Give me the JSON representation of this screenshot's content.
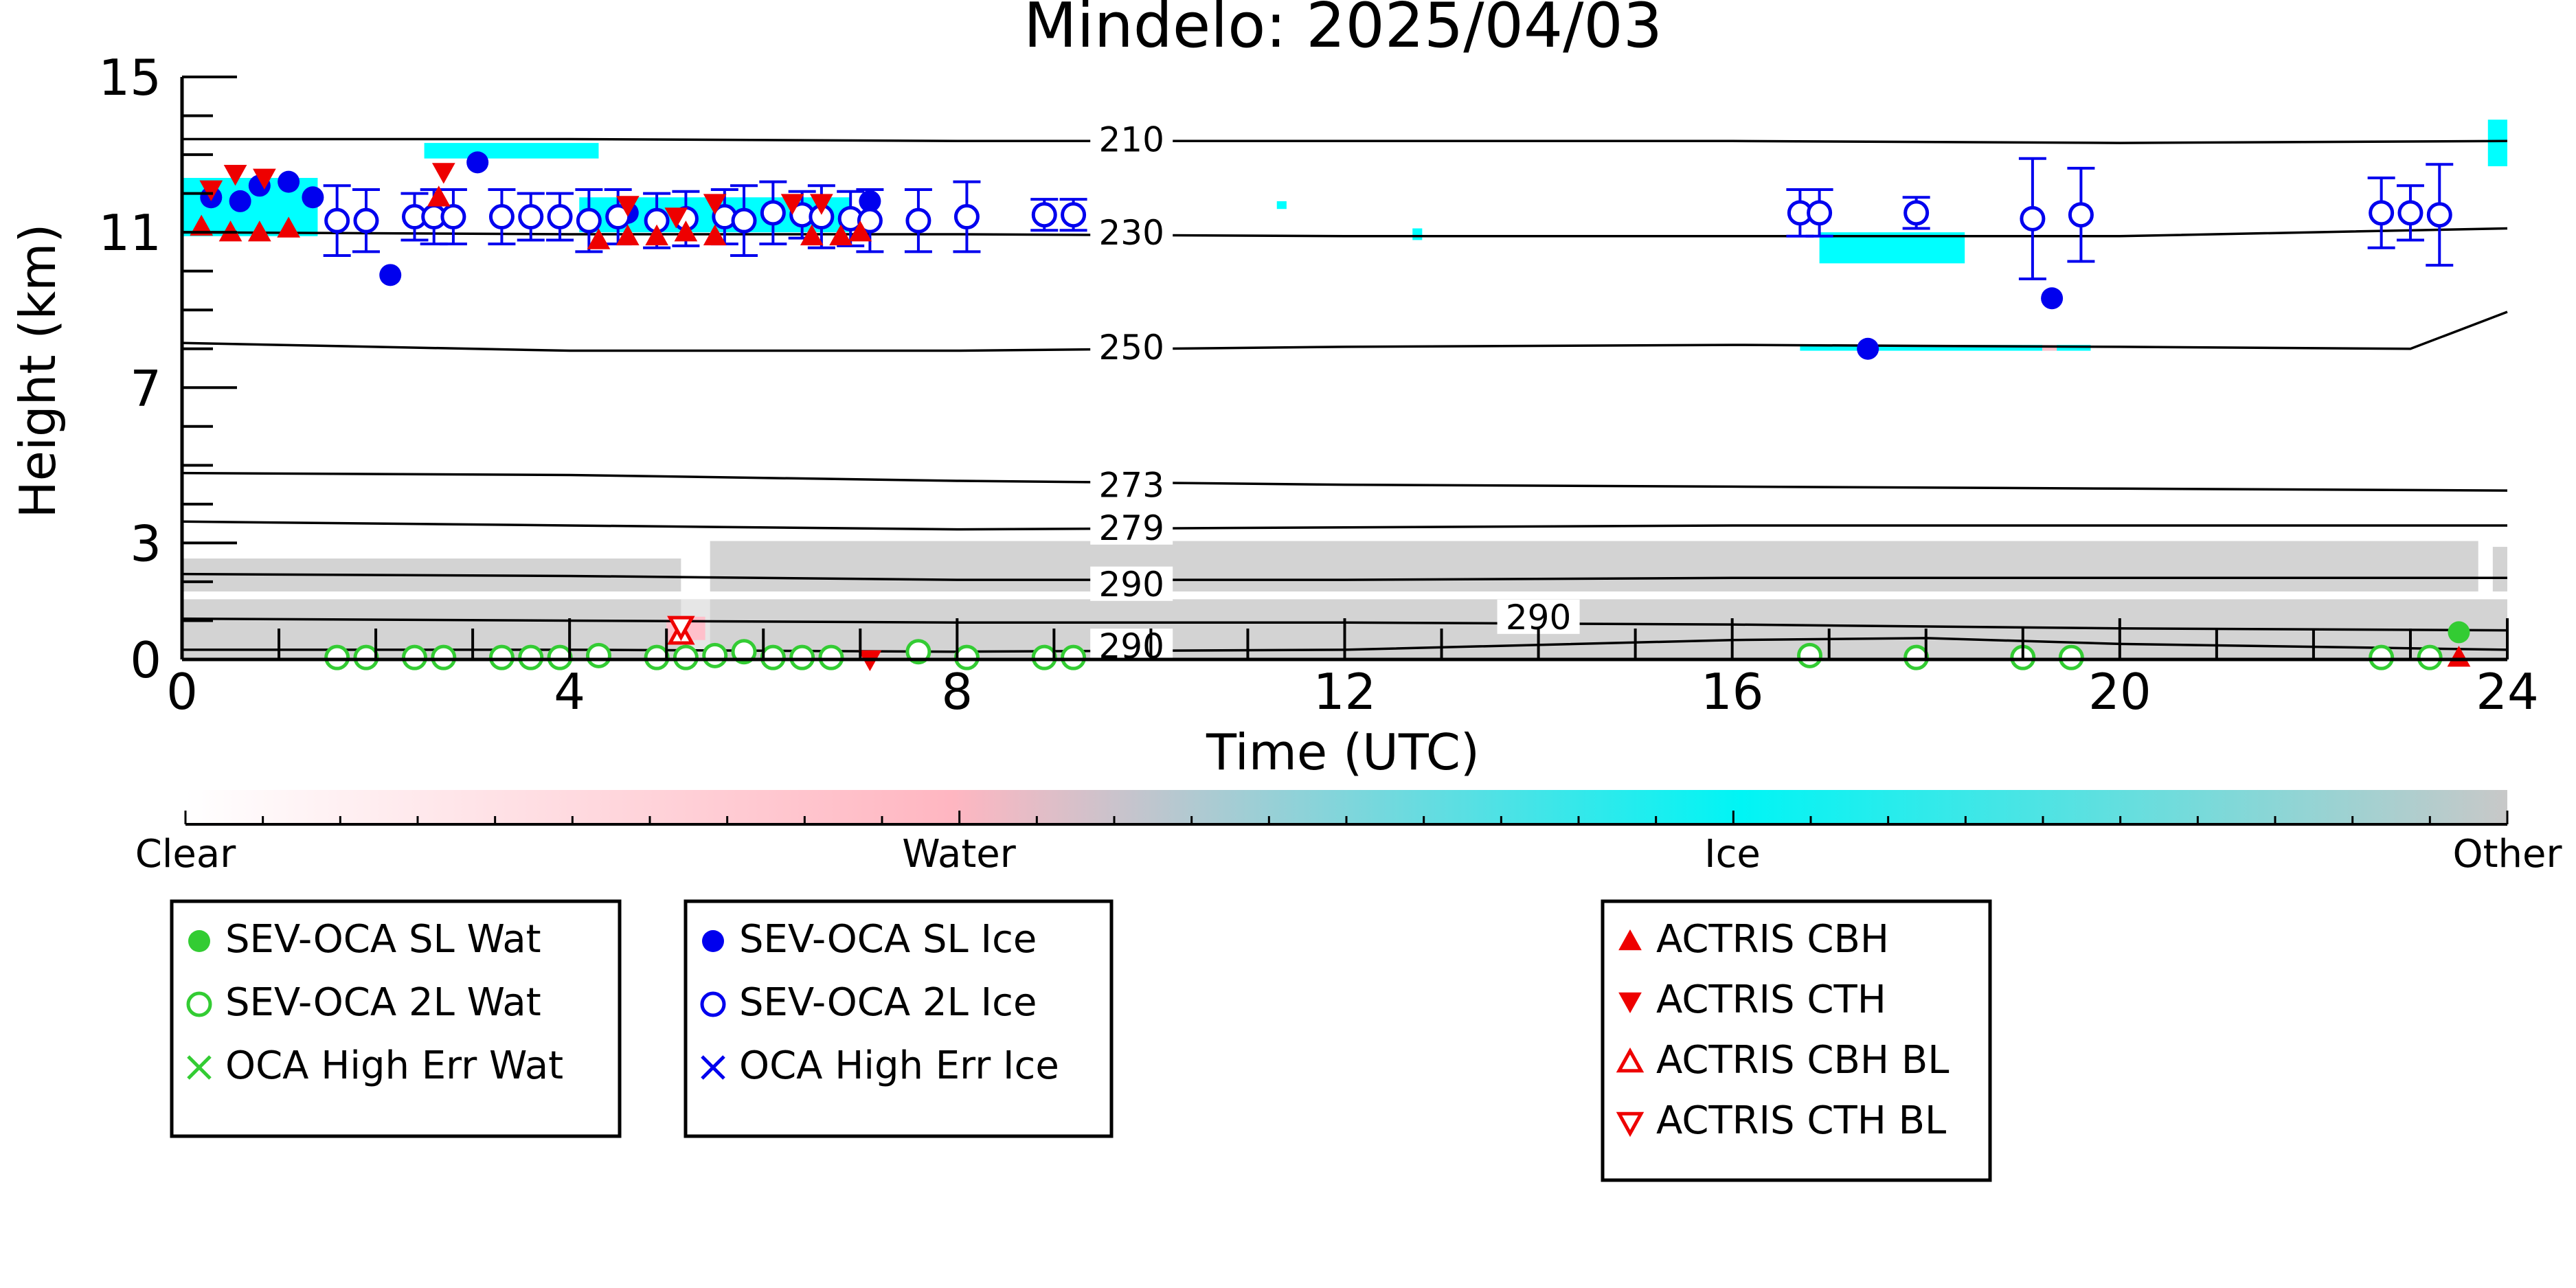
{
  "chart_data": {
    "type": "scatter",
    "title": "Mindelo: 2025/04/03",
    "xlabel": "Time (UTC)",
    "ylabel": "Height (km)",
    "xlim": [
      0,
      24
    ],
    "ylim": [
      0,
      15
    ],
    "xticks": [
      "0",
      "4",
      "8",
      "12",
      "16",
      "20",
      "24"
    ],
    "yticks": [
      "0",
      "3",
      "7",
      "11",
      "15"
    ],
    "colorbar": {
      "labels": [
        "Clear",
        "Water",
        "Ice",
        "Other"
      ],
      "colors": [
        "#ffffff",
        "#ffb6c1",
        "#00ffff",
        "#c8c8c8"
      ]
    },
    "isotherms": [
      {
        "label": "210",
        "x": [
          0,
          4,
          8,
          12,
          16,
          20,
          24
        ],
        "y": [
          13.4,
          13.4,
          13.35,
          13.35,
          13.35,
          13.3,
          13.35
        ]
      },
      {
        "label": "230",
        "x": [
          0,
          4,
          8,
          12,
          16,
          20,
          24
        ],
        "y": [
          11.0,
          10.95,
          10.95,
          10.9,
          10.9,
          10.9,
          11.1
        ]
      },
      {
        "label": "250",
        "x": [
          0,
          4,
          8,
          12,
          16,
          20,
          23,
          24
        ],
        "y": [
          8.15,
          7.95,
          7.95,
          8.05,
          8.1,
          8.05,
          8.0,
          8.95
        ]
      },
      {
        "label": "273",
        "x": [
          0,
          4,
          8,
          12,
          16,
          20,
          24
        ],
        "y": [
          4.8,
          4.75,
          4.6,
          4.5,
          4.45,
          4.4,
          4.35
        ]
      },
      {
        "label": "279",
        "x": [
          0,
          4,
          8,
          12,
          16,
          20,
          24
        ],
        "y": [
          3.55,
          3.45,
          3.35,
          3.4,
          3.45,
          3.45,
          3.45
        ]
      },
      {
        "label": "290",
        "x": [
          0,
          4,
          8,
          12,
          16,
          20,
          24
        ],
        "y": [
          2.2,
          2.15,
          2.05,
          2.05,
          2.1,
          2.1,
          2.1
        ]
      },
      {
        "label": "290",
        "x": [
          0,
          4,
          8,
          12,
          16,
          20,
          24
        ],
        "y": [
          1.05,
          1.0,
          0.95,
          0.95,
          0.9,
          0.8,
          0.75
        ]
      },
      {
        "label": "290",
        "x": [
          0,
          4,
          8,
          12,
          16,
          18,
          20,
          24
        ],
        "y": [
          0.25,
          0.25,
          0.2,
          0.25,
          0.5,
          0.55,
          0.4,
          0.25
        ]
      }
    ],
    "isotherm_labels": [
      {
        "text": "210",
        "x": 9.8,
        "y": 13.4
      },
      {
        "text": "230",
        "x": 9.8,
        "y": 11.0
      },
      {
        "text": "250",
        "x": 9.8,
        "y": 8.05
      },
      {
        "text": "273",
        "x": 9.8,
        "y": 4.5
      },
      {
        "text": "279",
        "x": 9.8,
        "y": 3.4
      },
      {
        "text": "290",
        "x": 9.8,
        "y": 1.95
      },
      {
        "text": "290",
        "x": 14.0,
        "y": 1.1
      },
      {
        "text": "290",
        "x": 9.8,
        "y": 0.35
      }
    ],
    "series": [
      {
        "name": "SEV-OCA SL Wat",
        "marker": "filled-circle",
        "color": "#33cc33",
        "points": [
          {
            "x": 23.5,
            "y": 0.7
          }
        ]
      },
      {
        "name": "SEV-OCA 2L Wat",
        "marker": "open-circle",
        "color": "#33cc33",
        "points": [
          {
            "x": 1.6,
            "y": 0.05
          },
          {
            "x": 1.9,
            "y": 0.05
          },
          {
            "x": 2.4,
            "y": 0.05
          },
          {
            "x": 2.7,
            "y": 0.05
          },
          {
            "x": 3.3,
            "y": 0.05
          },
          {
            "x": 3.6,
            "y": 0.05
          },
          {
            "x": 3.9,
            "y": 0.05
          },
          {
            "x": 4.3,
            "y": 0.1
          },
          {
            "x": 4.9,
            "y": 0.05
          },
          {
            "x": 5.2,
            "y": 0.05
          },
          {
            "x": 5.5,
            "y": 0.1
          },
          {
            "x": 5.8,
            "y": 0.2
          },
          {
            "x": 6.1,
            "y": 0.05
          },
          {
            "x": 6.4,
            "y": 0.05
          },
          {
            "x": 6.7,
            "y": 0.05
          },
          {
            "x": 7.6,
            "y": 0.2
          },
          {
            "x": 8.1,
            "y": 0.05
          },
          {
            "x": 8.9,
            "y": 0.05
          },
          {
            "x": 9.2,
            "y": 0.05
          },
          {
            "x": 16.8,
            "y": 0.1
          },
          {
            "x": 17.9,
            "y": 0.05
          },
          {
            "x": 19.0,
            "y": 0.05
          },
          {
            "x": 19.5,
            "y": 0.05
          },
          {
            "x": 22.7,
            "y": 0.05
          },
          {
            "x": 23.2,
            "y": 0.05
          }
        ]
      },
      {
        "name": "OCA High Err Wat",
        "marker": "x",
        "color": "#33cc33",
        "points": []
      },
      {
        "name": "SEV-OCA SL Ice",
        "marker": "filled-circle",
        "color": "#0000ee",
        "points": [
          {
            "x": 0.3,
            "y": 11.9
          },
          {
            "x": 0.6,
            "y": 11.8
          },
          {
            "x": 0.8,
            "y": 12.2
          },
          {
            "x": 1.1,
            "y": 12.3
          },
          {
            "x": 1.35,
            "y": 11.9
          },
          {
            "x": 2.15,
            "y": 9.9
          },
          {
            "x": 3.05,
            "y": 12.8
          },
          {
            "x": 4.6,
            "y": 11.5
          },
          {
            "x": 7.1,
            "y": 11.8
          },
          {
            "x": 17.4,
            "y": 8.0
          },
          {
            "x": 19.3,
            "y": 9.3
          }
        ]
      },
      {
        "name": "SEV-OCA 2L Ice",
        "marker": "open-circle",
        "color": "#0000ee",
        "errorbars": true,
        "points": [
          {
            "x": 1.6,
            "y": 11.3,
            "err": 0.9
          },
          {
            "x": 1.9,
            "y": 11.3,
            "err": 0.8
          },
          {
            "x": 2.4,
            "y": 11.4,
            "err": 0.6
          },
          {
            "x": 2.6,
            "y": 11.4,
            "err": 0.7
          },
          {
            "x": 2.8,
            "y": 11.4,
            "err": 0.7
          },
          {
            "x": 3.3,
            "y": 11.4,
            "err": 0.7
          },
          {
            "x": 3.6,
            "y": 11.4,
            "err": 0.6
          },
          {
            "x": 3.9,
            "y": 11.4,
            "err": 0.6
          },
          {
            "x": 4.2,
            "y": 11.3,
            "err": 0.8
          },
          {
            "x": 4.5,
            "y": 11.4,
            "err": 0.7
          },
          {
            "x": 4.9,
            "y": 11.3,
            "err": 0.7
          },
          {
            "x": 5.2,
            "y": 11.35,
            "err": 0.7
          },
          {
            "x": 5.6,
            "y": 11.4,
            "err": 0.7
          },
          {
            "x": 5.8,
            "y": 11.3,
            "err": 0.9
          },
          {
            "x": 6.1,
            "y": 11.5,
            "err": 0.8
          },
          {
            "x": 6.4,
            "y": 11.45,
            "err": 0.6
          },
          {
            "x": 6.6,
            "y": 11.4,
            "err": 0.8
          },
          {
            "x": 6.9,
            "y": 11.35,
            "err": 0.7
          },
          {
            "x": 7.1,
            "y": 11.3,
            "err": 0.8
          },
          {
            "x": 7.6,
            "y": 11.3,
            "err": 0.8
          },
          {
            "x": 8.1,
            "y": 11.4,
            "err": 0.9
          },
          {
            "x": 8.9,
            "y": 11.45,
            "err": 0.4
          },
          {
            "x": 9.2,
            "y": 11.45,
            "err": 0.4
          },
          {
            "x": 16.7,
            "y": 11.5,
            "err": 0.6
          },
          {
            "x": 16.9,
            "y": 11.5,
            "err": 0.6
          },
          {
            "x": 17.9,
            "y": 11.5,
            "err": 0.4
          },
          {
            "x": 19.1,
            "y": 11.35,
            "err": 1.55
          },
          {
            "x": 19.6,
            "y": 11.45,
            "err": 1.2
          },
          {
            "x": 22.7,
            "y": 11.5,
            "err": 0.9
          },
          {
            "x": 23.0,
            "y": 11.5,
            "err": 0.7
          },
          {
            "x": 23.3,
            "y": 11.45,
            "err": 1.3
          }
        ]
      },
      {
        "name": "OCA High Err Ice",
        "marker": "x",
        "color": "#0000ee",
        "points": []
      },
      {
        "name": "ACTRIS CBH",
        "marker": "filled-triangle-up",
        "color": "#ee0000",
        "points": [
          {
            "x": 0.2,
            "y": 11.15
          },
          {
            "x": 0.5,
            "y": 11.0
          },
          {
            "x": 0.8,
            "y": 11.0
          },
          {
            "x": 1.1,
            "y": 11.1
          },
          {
            "x": 2.65,
            "y": 11.9
          },
          {
            "x": 4.3,
            "y": 10.8
          },
          {
            "x": 4.6,
            "y": 10.9
          },
          {
            "x": 4.9,
            "y": 10.9
          },
          {
            "x": 5.2,
            "y": 11.0
          },
          {
            "x": 5.5,
            "y": 10.9
          },
          {
            "x": 6.5,
            "y": 10.9
          },
          {
            "x": 6.8,
            "y": 10.9
          },
          {
            "x": 7.0,
            "y": 11.0
          },
          {
            "x": 23.5,
            "y": 0.05
          }
        ]
      },
      {
        "name": "ACTRIS CTH",
        "marker": "filled-triangle-down",
        "color": "#ee0000",
        "points": [
          {
            "x": 0.3,
            "y": 12.1
          },
          {
            "x": 0.55,
            "y": 12.5
          },
          {
            "x": 0.85,
            "y": 12.4
          },
          {
            "x": 2.7,
            "y": 12.55
          },
          {
            "x": 4.6,
            "y": 11.7
          },
          {
            "x": 5.1,
            "y": 11.4
          },
          {
            "x": 5.5,
            "y": 11.75
          },
          {
            "x": 6.3,
            "y": 11.75
          },
          {
            "x": 6.6,
            "y": 11.75
          },
          {
            "x": 7.1,
            "y": 0.0
          }
        ]
      },
      {
        "name": "ACTRIS CBH BL",
        "marker": "open-triangle-up",
        "color": "#ee0000",
        "points": [
          {
            "x": 5.15,
            "y": 0.65
          }
        ]
      },
      {
        "name": "ACTRIS CTH BL",
        "marker": "open-triangle-down",
        "color": "#ee0000",
        "points": [
          {
            "x": 5.15,
            "y": 0.85
          }
        ]
      }
    ]
  },
  "legend_boxes": [
    {
      "items": [
        {
          "label": "SEV-OCA SL Wat",
          "marker": "filled-circle",
          "color": "#33cc33"
        },
        {
          "label": "SEV-OCA 2L Wat",
          "marker": "open-circle",
          "color": "#33cc33"
        },
        {
          "label": "OCA High Err Wat",
          "marker": "x",
          "color": "#33cc33"
        }
      ]
    },
    {
      "items": [
        {
          "label": "SEV-OCA SL Ice",
          "marker": "filled-circle",
          "color": "#0000ee"
        },
        {
          "label": "SEV-OCA 2L Ice",
          "marker": "open-circle",
          "color": "#0000ee"
        },
        {
          "label": "OCA High Err Ice",
          "marker": "x",
          "color": "#0000ee"
        }
      ]
    },
    {
      "items": [
        {
          "label": "ACTRIS CBH",
          "marker": "filled-triangle-up",
          "color": "#ee0000"
        },
        {
          "label": "ACTRIS CTH",
          "marker": "filled-triangle-down",
          "color": "#ee0000"
        },
        {
          "label": "ACTRIS CBH BL",
          "marker": "open-triangle-up",
          "color": "#ee0000"
        },
        {
          "label": "ACTRIS CTH BL",
          "marker": "open-triangle-down",
          "color": "#ee0000"
        }
      ]
    }
  ]
}
